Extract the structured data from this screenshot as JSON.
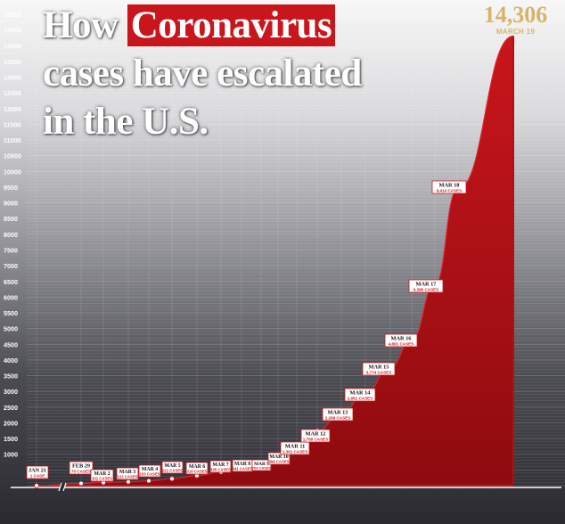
{
  "title": {
    "line1_pre": "How ",
    "line1_highlight": "Coronavirus",
    "line2": "cases have escalated",
    "line3": "in the U.S."
  },
  "peak": {
    "value": "14,306",
    "date": "MARCH 19"
  },
  "colors": {
    "area": "#c8161c",
    "area_dark": "#8e0b0f",
    "callout_border": "#c8161c",
    "peak_text": "#d8b36a"
  },
  "chart_data": {
    "type": "area",
    "ylim": [
      0,
      15000
    ],
    "y_ticks": [
      15000,
      14500,
      14000,
      13500,
      13000,
      12500,
      12000,
      11500,
      11000,
      10500,
      10000,
      9500,
      9000,
      8500,
      8000,
      7500,
      7000,
      6500,
      6000,
      5500,
      5000,
      4500,
      4000,
      3500,
      3000,
      2500,
      2000,
      1500,
      1000
    ],
    "y_tick_labels": [
      "15000",
      "14500",
      "14000",
      "13500",
      "13000",
      "12500",
      "12000",
      "11500",
      "11000",
      "10500",
      "10000",
      "9500",
      "9000",
      "8500",
      "8000",
      "7500",
      "7000",
      "6500",
      "6000",
      "5500",
      "5000",
      "4500",
      "4000",
      "3500",
      "3000",
      "2500",
      "2000",
      "1500",
      "1000"
    ],
    "x_axis_break_after": "JAN 21",
    "series": [
      {
        "values": [
          {
            "date": "JAN 21",
            "cases": 1
          },
          {
            "date": "FEB 29",
            "cases": 70
          },
          {
            "date": "MAR 2",
            "cases": 101
          },
          {
            "date": "MAR 3",
            "cases": 122
          },
          {
            "date": "MAR 4",
            "cases": 153
          },
          {
            "date": "MAR 5",
            "cases": 221
          },
          {
            "date": "MAR 6",
            "cases": 319
          },
          {
            "date": "MAR 7",
            "cases": 435
          },
          {
            "date": "MAR 8",
            "cases": 541
          },
          {
            "date": "MAR 9",
            "cases": 704
          },
          {
            "date": "MAR 10",
            "cases": 994
          },
          {
            "date": "MAR 11",
            "cases": 1301
          },
          {
            "date": "MAR 12",
            "cases": 1758
          },
          {
            "date": "MAR 13",
            "cases": 2299
          },
          {
            "date": "MAR 14",
            "cases": 2951
          },
          {
            "date": "MAR 15",
            "cases": 3774
          },
          {
            "date": "MAR 16",
            "cases": 4661
          },
          {
            "date": "MAR 17",
            "cases": 6396
          },
          {
            "date": "MAR 18",
            "cases": 9414
          },
          {
            "date": "MARCH 19",
            "cases": 14306
          }
        ]
      }
    ],
    "callouts": [
      {
        "date": "JAN 21",
        "text": "1 CASE"
      },
      {
        "date": "FEB 29",
        "text": "70 CASES"
      },
      {
        "date": "MAR 2",
        "text": "101 CASES"
      },
      {
        "date": "MAR 3",
        "text": "122 CASES"
      },
      {
        "date": "MAR 4",
        "text": "153 CASES"
      },
      {
        "date": "MAR 5",
        "text": "221 CASES"
      },
      {
        "date": "MAR 6",
        "text": "319 CASES"
      },
      {
        "date": "MAR 7",
        "text": "435 CASES"
      },
      {
        "date": "MAR 8",
        "text": "541 CASES"
      },
      {
        "date": "MAR 9",
        "text": "704 CASES"
      },
      {
        "date": "MAR 10",
        "text": "994 CASES"
      },
      {
        "date": "MAR 11",
        "text": "1,301 CASES"
      },
      {
        "date": "MAR 12",
        "text": "1,758 CASES"
      },
      {
        "date": "MAR 13",
        "text": "2,299 CASES"
      },
      {
        "date": "MAR 14",
        "text": "2,951 CASES"
      },
      {
        "date": "MAR 15",
        "text": "3,774 CASES"
      },
      {
        "date": "MAR 16",
        "text": "4,661 CASES"
      },
      {
        "date": "MAR 17",
        "text": "6,396 CASES"
      },
      {
        "date": "MAR 18",
        "text": "9,414 CASES"
      }
    ]
  }
}
